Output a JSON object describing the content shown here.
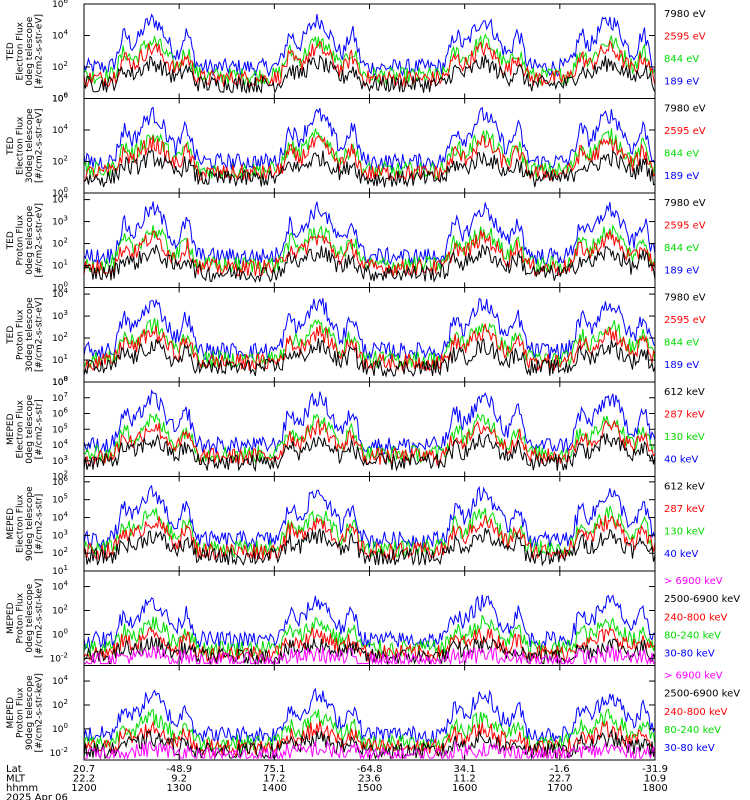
{
  "chart_data": {
    "type": "line",
    "colors": {
      "black": "#000000",
      "red": "#ff0000",
      "green": "#00dd00",
      "blue": "#0000ff",
      "magenta": "#ff00ff"
    },
    "x_axis": {
      "row_labels": [
        "Lat",
        "MLT",
        "hhmm",
        "2025 Apr 06"
      ],
      "ticks": [
        {
          "lat": "20.7",
          "mlt": "22.2",
          "hhmm": "1200"
        },
        {
          "lat": "-48.9",
          "mlt": "9.2",
          "hhmm": "1300"
        },
        {
          "lat": "75.1",
          "mlt": "17.2",
          "hhmm": "1400"
        },
        {
          "lat": "-64.8",
          "mlt": "23.6",
          "hhmm": "1500"
        },
        {
          "lat": "34.1",
          "mlt": "11.2",
          "hhmm": "1600"
        },
        {
          "lat": "-1.6",
          "mlt": "22.7",
          "hhmm": "1700"
        },
        {
          "lat": "-31.9",
          "mlt": "10.9",
          "hhmm": "1800"
        }
      ]
    },
    "panels": [
      {
        "ylabel": [
          "TED",
          "Electron Flux",
          "0deg telescope",
          "[#/cm2-s-str-eV]"
        ],
        "yticks": [
          {
            "b": "10",
            "e": "0"
          },
          {
            "b": "10",
            "e": "2"
          },
          {
            "b": "10",
            "e": "4"
          },
          {
            "b": "10",
            "e": "6"
          }
        ],
        "ylim": [
          0,
          6
        ],
        "legend": [
          {
            "text": "7980 eV",
            "color": "black"
          },
          {
            "text": "2595 eV",
            "color": "red"
          },
          {
            "text": "844 eV",
            "color": "green"
          },
          {
            "text": "189 eV",
            "color": "blue"
          }
        ]
      },
      {
        "ylabel": [
          "TED",
          "Electron Flux",
          "30deg telescope",
          "[#/cm2-s-str-eV]"
        ],
        "yticks": [
          {
            "b": "10",
            "e": "0"
          },
          {
            "b": "10",
            "e": "2"
          },
          {
            "b": "10",
            "e": "4"
          },
          {
            "b": "10",
            "e": "6"
          }
        ],
        "ylim": [
          0,
          6
        ],
        "legend": [
          {
            "text": "7980 eV",
            "color": "black"
          },
          {
            "text": "2595 eV",
            "color": "red"
          },
          {
            "text": "844 eV",
            "color": "green"
          },
          {
            "text": "189 eV",
            "color": "blue"
          }
        ]
      },
      {
        "ylabel": [
          "TED",
          "Proton Flux",
          "0deg telescope",
          "[#/cm2-s-str-eV]"
        ],
        "yticks": [
          {
            "b": "10",
            "e": "0"
          },
          {
            "b": "10",
            "e": "1"
          },
          {
            "b": "10",
            "e": "2"
          },
          {
            "b": "10",
            "e": "3"
          },
          {
            "b": "10",
            "e": "4"
          }
        ],
        "ylim": [
          0,
          4.3
        ],
        "legend": [
          {
            "text": "7980 eV",
            "color": "black"
          },
          {
            "text": "2595 eV",
            "color": "red"
          },
          {
            "text": "844 eV",
            "color": "green"
          },
          {
            "text": "189 eV",
            "color": "blue"
          }
        ]
      },
      {
        "ylabel": [
          "TED",
          "Proton Flux",
          "30deg telescope",
          "[#/cm2-s-str-eV]"
        ],
        "yticks": [
          {
            "b": "10",
            "e": "0"
          },
          {
            "b": "10",
            "e": "1"
          },
          {
            "b": "10",
            "e": "2"
          },
          {
            "b": "10",
            "e": "3"
          },
          {
            "b": "10",
            "e": "4"
          }
        ],
        "ylim": [
          0,
          4.3
        ],
        "legend": [
          {
            "text": "7980 eV",
            "color": "black"
          },
          {
            "text": "2595 eV",
            "color": "red"
          },
          {
            "text": "844 eV",
            "color": "green"
          },
          {
            "text": "189 eV",
            "color": "blue"
          }
        ]
      },
      {
        "ylabel": [
          "MEPED",
          "Electron Flux",
          "0deg telescope",
          "[#/cm2-s-str]"
        ],
        "yticks": [
          {
            "b": "10",
            "e": "2"
          },
          {
            "b": "10",
            "e": "3"
          },
          {
            "b": "10",
            "e": "4"
          },
          {
            "b": "10",
            "e": "5"
          },
          {
            "b": "10",
            "e": "6"
          },
          {
            "b": "10",
            "e": "7"
          },
          {
            "b": "10",
            "e": "8"
          }
        ],
        "ylim": [
          2,
          8
        ],
        "legend": [
          {
            "text": "612 keV",
            "color": "black"
          },
          {
            "text": "287 keV",
            "color": "red"
          },
          {
            "text": "130 keV",
            "color": "green"
          },
          {
            "text": "40 keV",
            "color": "blue"
          }
        ]
      },
      {
        "ylabel": [
          "MEPED",
          "Electron Flux",
          "90deg telescope",
          "[#/cm2-s-str]"
        ],
        "yticks": [
          {
            "b": "10",
            "e": "1"
          },
          {
            "b": "10",
            "e": "2"
          },
          {
            "b": "10",
            "e": "3"
          },
          {
            "b": "10",
            "e": "4"
          },
          {
            "b": "10",
            "e": "5"
          },
          {
            "b": "10",
            "e": "6"
          }
        ],
        "ylim": [
          1,
          6.3
        ],
        "legend": [
          {
            "text": "612 keV",
            "color": "black"
          },
          {
            "text": "287 keV",
            "color": "red"
          },
          {
            "text": "130 keV",
            "color": "green"
          },
          {
            "text": "40 keV",
            "color": "blue"
          }
        ]
      },
      {
        "ylabel": [
          "MEPED",
          "Proton Flux",
          "0deg telescope",
          "[#/cm2-s-str-keV]"
        ],
        "yticks": [
          {
            "b": "10",
            "e": "-2"
          },
          {
            "b": "10",
            "e": "0"
          },
          {
            "b": "10",
            "e": "2"
          },
          {
            "b": "10",
            "e": "4"
          }
        ],
        "ylim": [
          -2.6,
          5.3
        ],
        "legend": [
          {
            "text": "> 6900 keV",
            "color": "magenta"
          },
          {
            "text": "2500-6900 keV",
            "color": "black"
          },
          {
            "text": "240-800 keV",
            "color": "red"
          },
          {
            "text": "80-240 keV",
            "color": "green"
          },
          {
            "text": "30-80 keV",
            "color": "blue"
          }
        ]
      },
      {
        "ylabel": [
          "MEPED",
          "Proton Flux",
          "90deg telescope",
          "[#/cm2-s-str-keV]"
        ],
        "yticks": [
          {
            "b": "10",
            "e": "-2"
          },
          {
            "b": "10",
            "e": "0"
          },
          {
            "b": "10",
            "e": "2"
          },
          {
            "b": "10",
            "e": "4"
          }
        ],
        "ylim": [
          -2.6,
          5.3
        ],
        "legend": [
          {
            "text": "> 6900 keV",
            "color": "magenta"
          },
          {
            "text": "2500-6900 keV",
            "color": "black"
          },
          {
            "text": "240-800 keV",
            "color": "red"
          },
          {
            "text": "80-240 keV",
            "color": "green"
          },
          {
            "text": "30-80 keV",
            "color": "blue"
          }
        ]
      }
    ]
  }
}
